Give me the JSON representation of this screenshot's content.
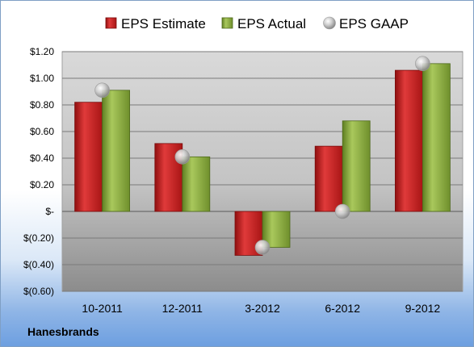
{
  "company": "Hanesbrands",
  "chart_data": {
    "type": "bar",
    "categories": [
      "10-2011",
      "12-2011",
      "3-2012",
      "6-2012",
      "9-2012"
    ],
    "series": [
      {
        "name": "EPS Estimate",
        "marker": "bar",
        "color": "#cc1f1f",
        "values": [
          0.82,
          0.51,
          -0.33,
          0.49,
          1.06
        ]
      },
      {
        "name": "EPS Actual",
        "marker": "bar",
        "color": "#8fb13f",
        "values": [
          0.91,
          0.41,
          -0.27,
          0.68,
          1.11
        ]
      },
      {
        "name": "EPS GAAP",
        "marker": "sphere",
        "color": "#b8b8b8",
        "values": [
          0.91,
          0.41,
          -0.27,
          0.0,
          1.11
        ]
      }
    ],
    "y_ticks": [
      {
        "value": 1.2,
        "label": "$1.20"
      },
      {
        "value": 1.0,
        "label": "$1.00"
      },
      {
        "value": 0.8,
        "label": "$0.80"
      },
      {
        "value": 0.6,
        "label": "$0.60"
      },
      {
        "value": 0.4,
        "label": "$0.40"
      },
      {
        "value": 0.2,
        "label": "$0.20"
      },
      {
        "value": 0.0,
        "label": "$-"
      },
      {
        "value": -0.2,
        "label": "$(0.20)"
      },
      {
        "value": -0.4,
        "label": "$(0.40)"
      },
      {
        "value": -0.6,
        "label": "$(0.60)"
      }
    ],
    "ylim": [
      -0.6,
      1.2
    ],
    "grid": true,
    "legend_position": "top"
  }
}
